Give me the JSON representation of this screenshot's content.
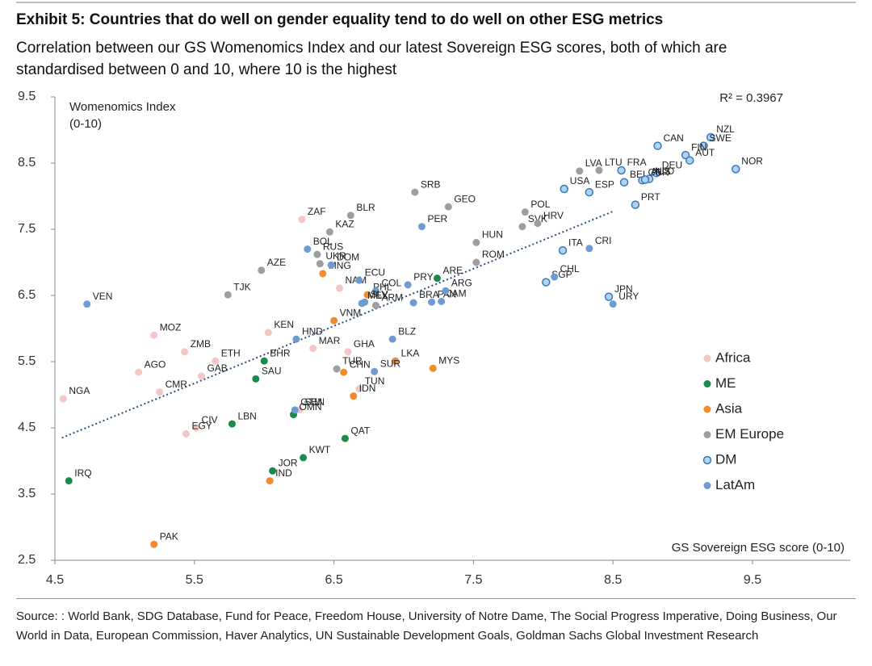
{
  "chart_data": {
    "type": "scatter",
    "title": "Exhibit 5: Countries that do well on gender equality tend to do well on other ESG metrics",
    "subtitle": "Correlation between our GS Womenomics Index and our latest Sovereign ESG scores, both of which are standardised between 0 and 10, where 10 is the highest",
    "ylabel": [
      "Womenomics Index",
      "(0-10)"
    ],
    "xlabel": "GS Sovereign ESG score (0-10)",
    "annotation": "R² = 0.3967",
    "source": "Source: : World Bank, SDG Database, Fund for Peace, Freedom House, University of Notre Dame, The Social Progress Imperative, Doing Business, Our World in Data, European Commission, Haver Analytics, UN Sustainable Development Goals, Goldman Sachs Global Investment Research",
    "xlim": [
      4.5,
      10.2
    ],
    "ylim": [
      2.5,
      9.5
    ],
    "xticks": [
      4.5,
      5.5,
      6.5,
      7.5,
      8.5,
      9.5
    ],
    "yticks": [
      2.5,
      3.5,
      4.5,
      5.5,
      6.5,
      7.5,
      8.5,
      9.5
    ],
    "grid": false,
    "legend": "right",
    "trendline": {
      "x": [
        4.55,
        8.5
      ],
      "y": [
        4.35,
        7.77
      ],
      "color": "#2c4f7c"
    },
    "series": [
      {
        "name": "Africa",
        "color": "#f5c6c6",
        "labels": [
          "NGA",
          "ZAF",
          "CMR",
          "AGO",
          "MOZ",
          "ZMB",
          "GAB",
          "ETH",
          "CIV",
          "EGY",
          "KEN",
          "MAR",
          "GHA",
          "NAM",
          "TUN",
          "SEN"
        ],
        "x": [
          4.56,
          6.27,
          5.25,
          5.1,
          5.21,
          5.43,
          5.55,
          5.65,
          5.51,
          5.44,
          6.03,
          6.35,
          6.6,
          6.54,
          6.68,
          6.25
        ],
        "y": [
          4.94,
          7.65,
          5.04,
          5.34,
          5.9,
          5.65,
          5.28,
          5.51,
          4.5,
          4.41,
          5.94,
          5.7,
          5.65,
          6.61,
          5.09,
          4.77
        ]
      },
      {
        "name": "ME",
        "color": "#1b8a4c",
        "labels": [
          "IRQ",
          "BHR",
          "SAU",
          "LBN",
          "OMN",
          "JOR",
          "KWT",
          "QAT",
          "ARE"
        ],
        "x": [
          4.6,
          6.0,
          5.94,
          5.77,
          6.21,
          6.06,
          6.28,
          6.58,
          7.24
        ],
        "y": [
          3.7,
          5.51,
          5.24,
          4.56,
          4.7,
          3.85,
          4.05,
          4.34,
          6.76
        ]
      },
      {
        "name": "Asia",
        "color": "#f28a2e",
        "labels": [
          "PAK",
          "IND",
          "MNG",
          "VNM",
          "CHN",
          "IDN",
          "LKA",
          "MYS",
          "PHL"
        ],
        "x": [
          5.21,
          6.04,
          6.42,
          6.5,
          6.57,
          6.64,
          6.94,
          7.21,
          6.74
        ],
        "y": [
          2.74,
          3.7,
          6.83,
          6.12,
          5.34,
          4.98,
          5.51,
          5.4,
          6.51
        ]
      },
      {
        "name": "EM Europe",
        "color": "#9e9e9e",
        "labels": [
          "TJK",
          "AZE",
          "KAZ",
          "BLR",
          "RUS",
          "UKR",
          "SRB",
          "GEO",
          "POL",
          "SVK",
          "HRV",
          "LVA",
          "LTU",
          "HUN",
          "ROM",
          "TUR",
          "ARM"
        ],
        "x": [
          5.74,
          5.98,
          6.47,
          6.62,
          6.38,
          6.4,
          7.08,
          7.32,
          7.87,
          7.85,
          7.96,
          8.26,
          8.4,
          7.52,
          7.52,
          6.52,
          6.8
        ],
        "y": [
          6.51,
          6.88,
          7.46,
          7.71,
          7.12,
          6.98,
          8.06,
          7.84,
          7.76,
          7.54,
          7.59,
          8.38,
          8.39,
          7.3,
          7.0,
          5.39,
          6.35
        ]
      },
      {
        "name": "DM",
        "color": "#aed4f2",
        "edgecolor": "#3b78b8",
        "labels": [
          "CAN",
          "NZL",
          "SWE",
          "FIN",
          "AUT",
          "NOR",
          "FRA",
          "BEL",
          "DEU",
          "GBR",
          "NLD",
          "USA",
          "ESP",
          "AUS",
          "PRT",
          "ITA",
          "SGP",
          "JPN"
        ],
        "x": [
          8.82,
          9.2,
          9.15,
          9.02,
          9.05,
          9.38,
          8.56,
          8.58,
          8.81,
          8.71,
          8.76,
          8.15,
          8.33,
          8.73,
          8.66,
          8.14,
          8.02,
          8.47
        ],
        "y": [
          8.76,
          8.89,
          8.76,
          8.62,
          8.54,
          8.41,
          8.39,
          8.21,
          8.35,
          8.24,
          8.26,
          8.11,
          8.06,
          8.25,
          7.87,
          7.18,
          6.7,
          6.48
        ]
      },
      {
        "name": "LatAm",
        "color": "#6e9bd2",
        "labels": [
          "VEN",
          "BOL",
          "DOM",
          "ECU",
          "COL",
          "PER",
          "PRY",
          "SLV",
          "MEX",
          "BRA",
          "JAM",
          "PAN",
          "ARG",
          "HND",
          "GTM",
          "SUR",
          "BLZ",
          "CRI",
          "CHL",
          "URY"
        ],
        "x": [
          4.73,
          6.31,
          6.48,
          6.68,
          6.8,
          7.13,
          7.03,
          6.72,
          6.7,
          7.07,
          7.27,
          7.2,
          7.3,
          6.23,
          6.22,
          6.79,
          6.92,
          8.33,
          8.08,
          8.5
        ],
        "y": [
          6.37,
          7.2,
          6.96,
          6.73,
          6.57,
          7.54,
          6.66,
          6.4,
          6.38,
          6.39,
          6.41,
          6.4,
          6.57,
          5.84,
          4.77,
          5.35,
          5.84,
          7.21,
          6.78,
          6.37
        ]
      }
    ]
  }
}
